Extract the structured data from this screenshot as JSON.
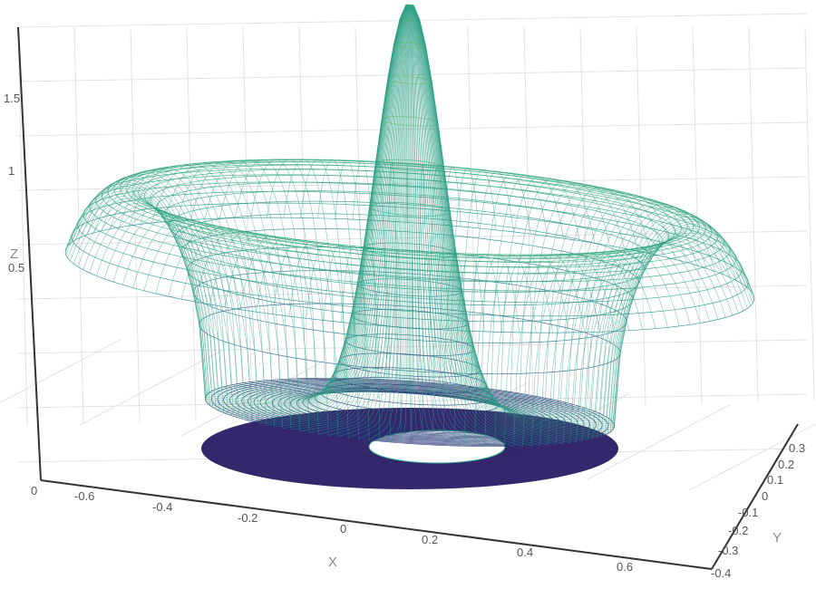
{
  "chart_data": {
    "type": "surface-3d-wireframe",
    "surface": "z = exp(-(x^2+y^2)/0.002) * 1.9 + ring(r≈0.3..0.45, height≈0.95) with dark base annulus",
    "x_axis": {
      "label": "X",
      "range": [
        -0.7,
        0.7
      ],
      "ticks": [
        "0",
        "-0.6",
        "-0.4",
        "-0.2",
        "0",
        "0.2",
        "0.4",
        "0.6"
      ]
    },
    "y_axis": {
      "label": "Y",
      "range": [
        -0.4,
        0.35
      ],
      "ticks": [
        "0.3",
        "0.2",
        "0.1",
        "0",
        "-0.1",
        "-0.2",
        "-0.3",
        "-0.4"
      ]
    },
    "z_axis": {
      "label": "Z",
      "range": [
        0,
        1.9
      ],
      "ticks": [
        "1.5",
        "1",
        "0.5"
      ]
    },
    "features": {
      "central_peak_height": 1.9,
      "ring_height": 0.95,
      "ring_inner_radius": 0.3,
      "ring_outer_radius": 0.45,
      "base_annulus_inner_radius": 0.08,
      "base_annulus_outer_radius": 0.3
    },
    "colorscale": "viridis",
    "colors": {
      "low": "#1f0f5c",
      "mid": "#2aa58a",
      "high": "#d9ec4c"
    },
    "grid": true
  }
}
